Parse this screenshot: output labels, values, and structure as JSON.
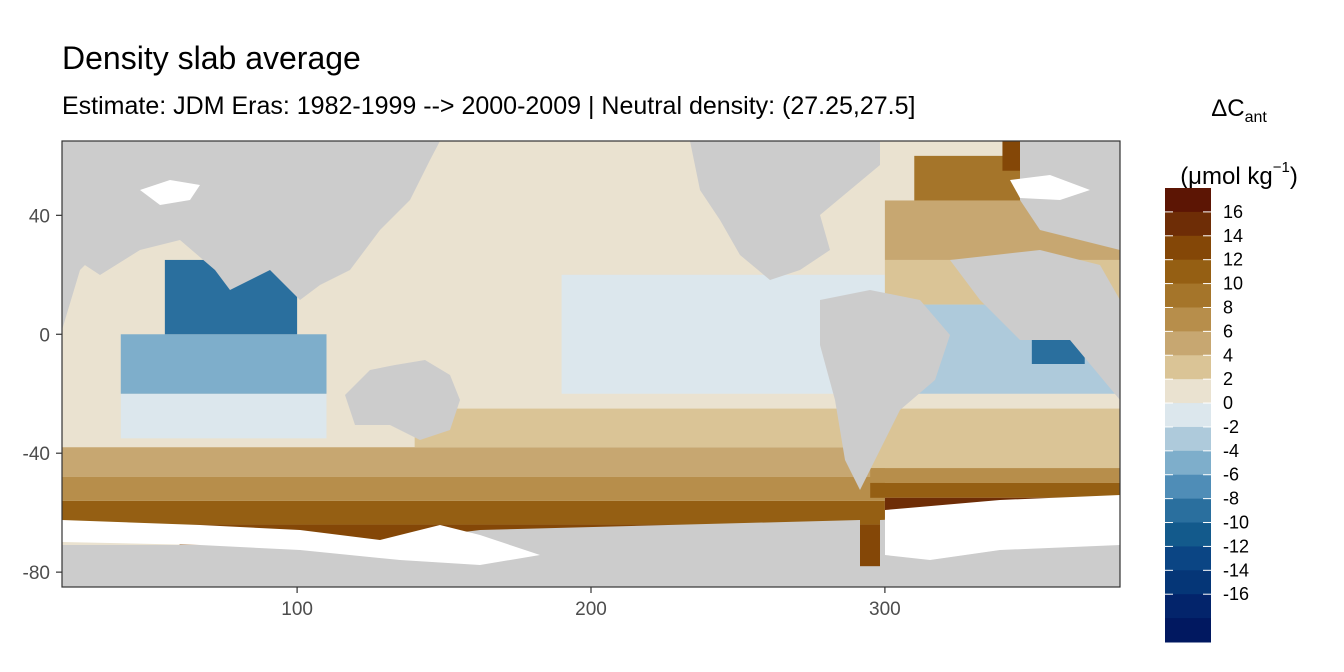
{
  "chart_data": {
    "type": "heatmap",
    "title": "Density slab average",
    "subtitle": "Estimate: JDM Eras: 1982-1999 --> 2000-2009 | Neutral density: (27.25,27.5]",
    "legend": {
      "title_main": "ΔC",
      "title_sub": "ant",
      "unit_prefix": "(μmol kg",
      "unit_sup": "−1",
      "unit_suffix": ")",
      "placement": "right",
      "breaks": [
        16,
        14,
        12,
        10,
        8,
        6,
        4,
        2,
        0,
        -2,
        -4,
        -6,
        -8,
        -10,
        -12,
        -14,
        -16
      ],
      "colors": [
        "#5c1504",
        "#6e2d06",
        "#844707",
        "#955f13",
        "#a5752a",
        "#b78e4b",
        "#c7a771",
        "#dac496",
        "#eae2d0",
        "#dce7ed",
        "#aecadb",
        "#7eaecb",
        "#4f8db7",
        "#2a6f9e",
        "#135a8c",
        "#0b4584",
        "#053677",
        "#03246b",
        "#011860"
      ]
    },
    "x_axis": {
      "range": [
        20,
        380
      ],
      "ticks": [
        100,
        200,
        300
      ],
      "label": ""
    },
    "y_axis": {
      "range": [
        -85,
        65
      ],
      "ticks": [
        40,
        0,
        -40,
        -80
      ],
      "label": ""
    },
    "grid": false,
    "colors": {
      "land": "#cccccc",
      "no_data": "#ffffff"
    },
    "regions": [
      {
        "lon": [
          20,
          380
        ],
        "lat": [
          -85,
          -72
        ],
        "value": null,
        "kind": "land-antarctica"
      },
      {
        "lon": [
          60,
          300
        ],
        "lat": [
          -78,
          -64
        ],
        "value": 12
      },
      {
        "lon": [
          20,
          300
        ],
        "lat": [
          -64,
          -56
        ],
        "value": 10
      },
      {
        "lon": [
          20,
          300
        ],
        "lat": [
          -56,
          -48
        ],
        "value": 6
      },
      {
        "lon": [
          20,
          300
        ],
        "lat": [
          -48,
          -38
        ],
        "value": 4
      },
      {
        "lon": [
          140,
          290
        ],
        "lat": [
          -38,
          -25
        ],
        "value": 2
      },
      {
        "lon": [
          150,
          260
        ],
        "lat": [
          -20,
          60
        ],
        "value": 0.5
      },
      {
        "lon": [
          190,
          300
        ],
        "lat": [
          -20,
          20
        ],
        "value": -0.5
      },
      {
        "lon": [
          40,
          110
        ],
        "lat": [
          -35,
          -20
        ],
        "value": -2
      },
      {
        "lon": [
          40,
          110
        ],
        "lat": [
          -20,
          0
        ],
        "value": -5
      },
      {
        "lon": [
          55,
          100
        ],
        "lat": [
          0,
          25
        ],
        "value": -9
      },
      {
        "lon": [
          300,
          380
        ],
        "lat": [
          -20,
          10
        ],
        "value": -3
      },
      {
        "lon": [
          350,
          368
        ],
        "lat": [
          -10,
          5
        ],
        "value": -9
      },
      {
        "lon": [
          300,
          380
        ],
        "lat": [
          10,
          25
        ],
        "value": 2
      },
      {
        "lon": [
          300,
          380
        ],
        "lat": [
          25,
          45
        ],
        "value": 4
      },
      {
        "lon": [
          310,
          380
        ],
        "lat": [
          45,
          60
        ],
        "value": 8
      },
      {
        "lon": [
          340,
          380
        ],
        "lat": [
          55,
          65
        ],
        "value": 12
      },
      {
        "lon": [
          295,
          380
        ],
        "lat": [
          -45,
          -25
        ],
        "value": 2
      },
      {
        "lon": [
          295,
          380
        ],
        "lat": [
          -50,
          -45
        ],
        "value": 6
      },
      {
        "lon": [
          295,
          380
        ],
        "lat": [
          -55,
          -50
        ],
        "value": 10
      },
      {
        "lon": [
          300,
          375
        ],
        "lat": [
          -62,
          -55
        ],
        "value": 14
      }
    ]
  }
}
